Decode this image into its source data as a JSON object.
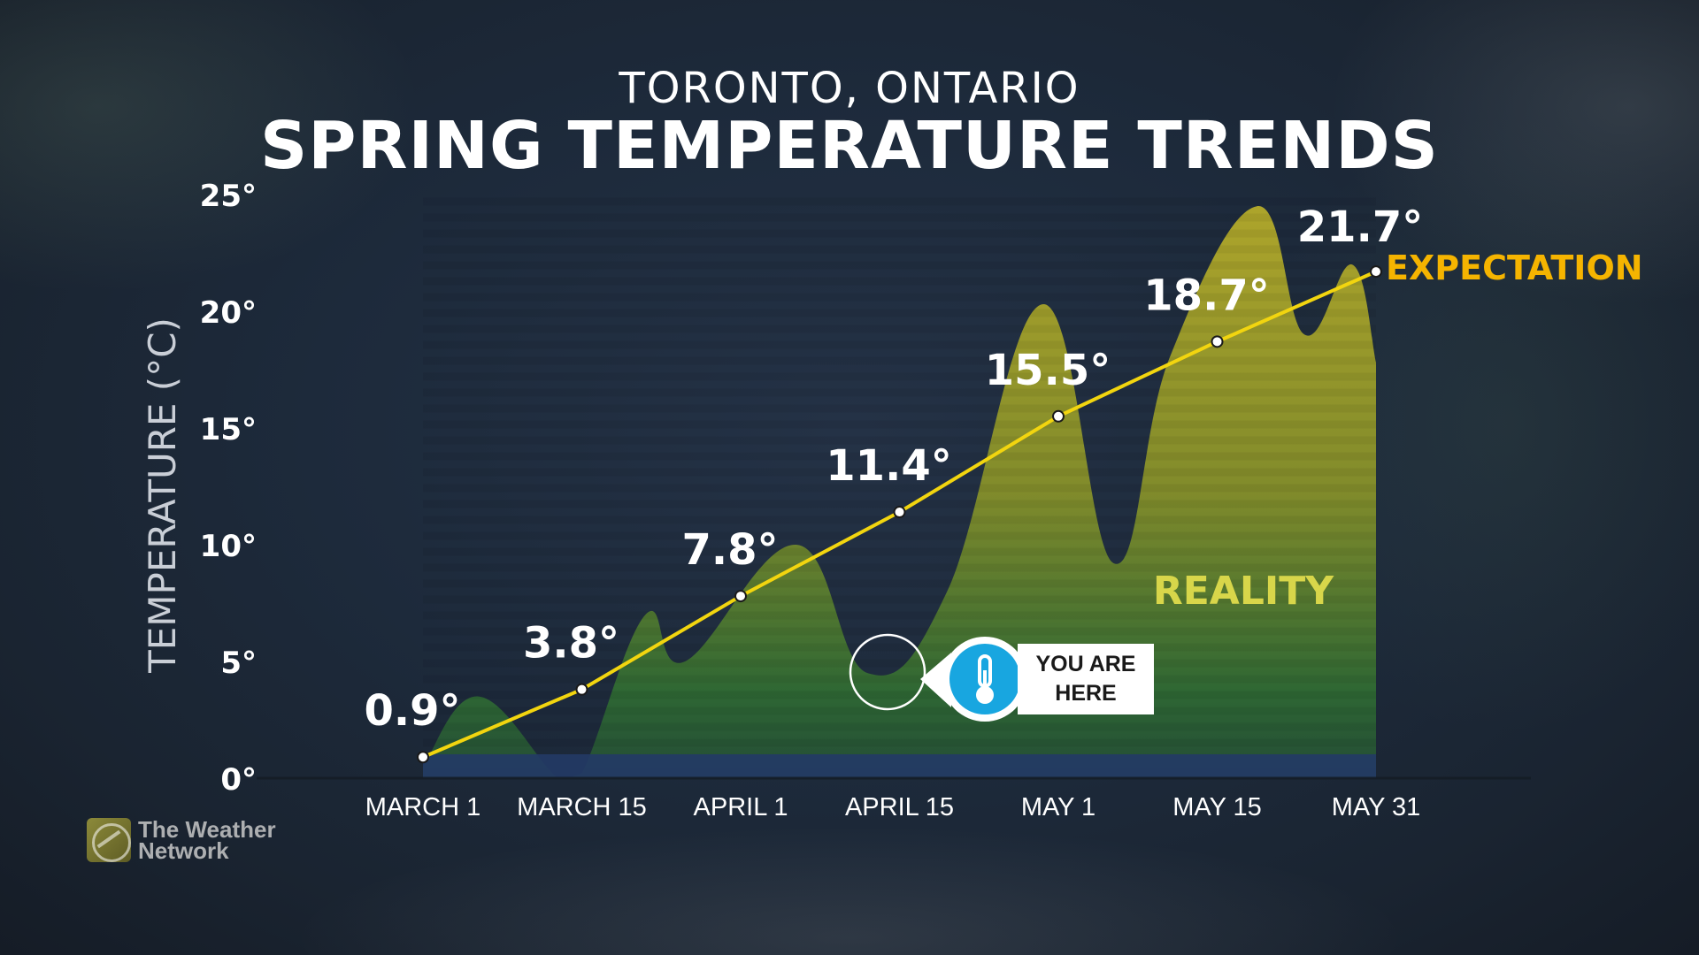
{
  "header": {
    "location": "TORONTO, ONTARIO",
    "title": "SPRING TEMPERATURE TRENDS"
  },
  "logo": {
    "line1": "The Weather",
    "line2": "Network",
    "icon": "weather-network-logo-icon"
  },
  "callout": {
    "line1": "YOU ARE",
    "line2": "HERE",
    "icon": "thermometer-icon"
  },
  "colors": {
    "expectation": "#f5b400",
    "expectation_line": "#f2d50f",
    "reality_label": "#d8d64a",
    "reality_fill_top": "#a9a22a",
    "reality_fill_bottom": "#2b5a2f",
    "base_band": "#243a66",
    "callout_blue": "#18a6e0"
  },
  "chart_data": {
    "type": "area",
    "ylabel": "TEMPERATURE (°C)",
    "ylim": [
      0,
      25
    ],
    "yticks": [
      "0°",
      "5°",
      "10°",
      "15°",
      "20°",
      "25°"
    ],
    "yticks_values": [
      0,
      5,
      10,
      15,
      20,
      25
    ],
    "categories": [
      "MARCH 1",
      "MARCH 15",
      "APRIL 1",
      "APRIL 15",
      "MAY 1",
      "MAY 15",
      "MAY 31"
    ],
    "series": [
      {
        "name": "EXPECTATION",
        "type": "line",
        "values": [
          0.9,
          3.8,
          7.8,
          11.4,
          15.5,
          18.7,
          21.7
        ],
        "labels": [
          "0.9°",
          "3.8°",
          "7.8°",
          "11.4°",
          "15.5°",
          "18.7°",
          "21.7°"
        ]
      },
      {
        "name": "REALITY",
        "type": "area",
        "x": [
          0,
          0.35,
          0.85,
          1.0,
          1.4,
          1.65,
          2.35,
          2.8,
          3.3,
          3.9,
          4.35,
          4.7,
          5.25,
          5.55,
          5.85,
          6.0
        ],
        "values": [
          0.5,
          3.5,
          0,
          0.2,
          7,
          5,
          10,
          4.5,
          8,
          20.3,
          9.2,
          18,
          24.5,
          19,
          22,
          17.8
        ]
      }
    ],
    "annotations": [
      "YOU ARE HERE"
    ],
    "grid": false,
    "legend": "inline labels"
  }
}
